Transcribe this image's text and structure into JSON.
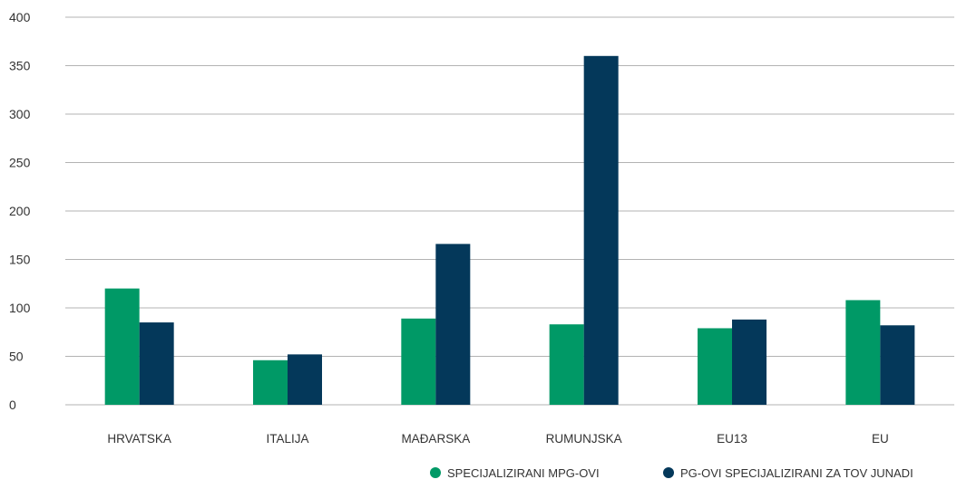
{
  "chart_data": {
    "type": "bar",
    "title": "",
    "xlabel": "",
    "ylabel": "",
    "categories": [
      "HRVATSKA",
      "ITALIJA",
      "MAĐARSKA",
      "RUMUNJSKA",
      "EU13",
      "EU"
    ],
    "series": [
      {
        "name": "SPECIJALIZIRANI MPG-OVI",
        "color": "#009966",
        "values": [
          120,
          46,
          89,
          83,
          79,
          108
        ]
      },
      {
        "name": "PG-OVI SPECIJALIZIRANI ZA TOV JUNADI",
        "color": "#04385a",
        "values": [
          85,
          52,
          166,
          360,
          88,
          82
        ]
      }
    ],
    "ylim": [
      0,
      400
    ],
    "yticks": [
      "0",
      "50",
      "100",
      "150",
      "200",
      "250",
      "300",
      "350",
      "400"
    ],
    "grid": true,
    "legend_position": "bottom-right"
  }
}
